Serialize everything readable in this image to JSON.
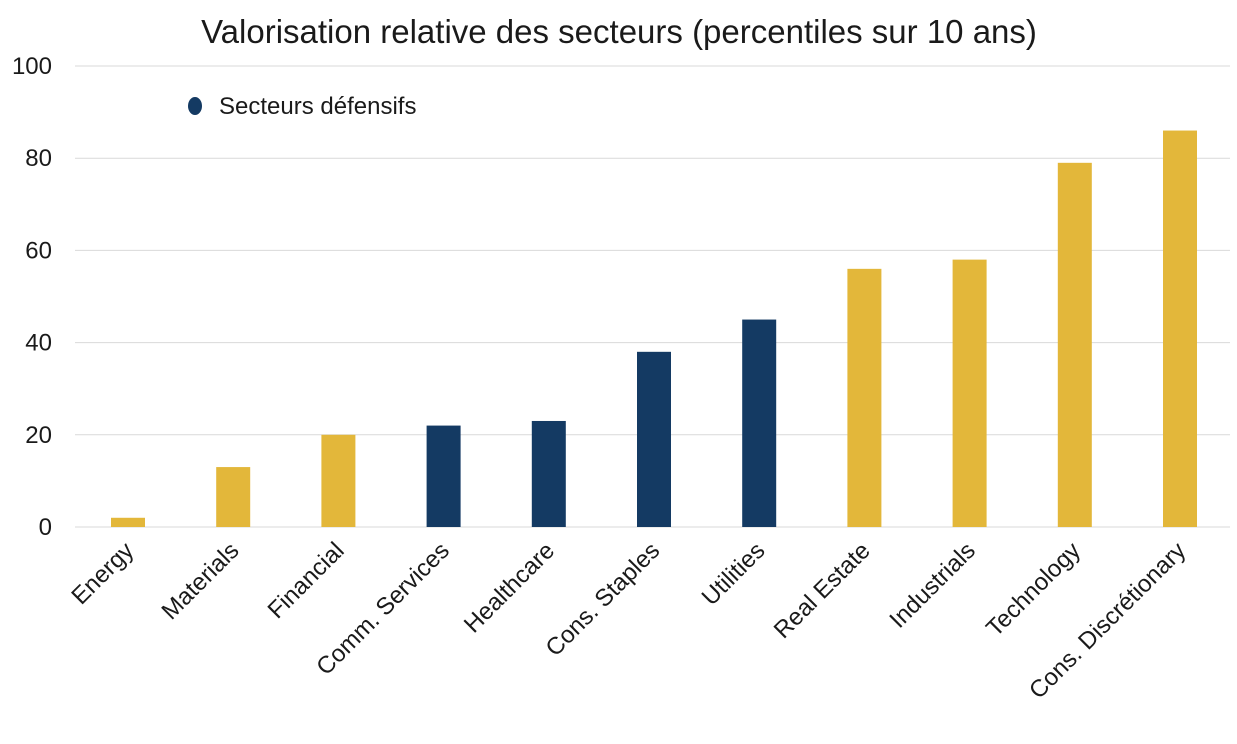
{
  "chart_data": {
    "type": "bar",
    "title": "Valorisation relative des secteurs (percentiles sur 10 ans)",
    "xlabel": "",
    "ylabel": "",
    "ylim": [
      0,
      100
    ],
    "yticks": [
      0,
      20,
      40,
      60,
      80,
      100
    ],
    "grid": true,
    "legend": {
      "placement": "top-left",
      "entries": [
        {
          "label": "Secteurs défensifs",
          "color": "#143a63"
        }
      ]
    },
    "categories": [
      "Energy",
      "Materials",
      "Financial",
      "Comm. Services",
      "Healthcare",
      "Cons. Staples",
      "Utilities",
      "Real Estate",
      "Industrials",
      "Technology",
      "Cons. Discrétionary"
    ],
    "values": [
      2,
      13,
      20,
      22,
      23,
      38,
      45,
      56,
      58,
      79,
      86
    ],
    "defensive": [
      false,
      false,
      false,
      true,
      true,
      true,
      true,
      false,
      false,
      false,
      false
    ],
    "colors": {
      "defensive": "#143a63",
      "other": "#e3b73a"
    }
  }
}
